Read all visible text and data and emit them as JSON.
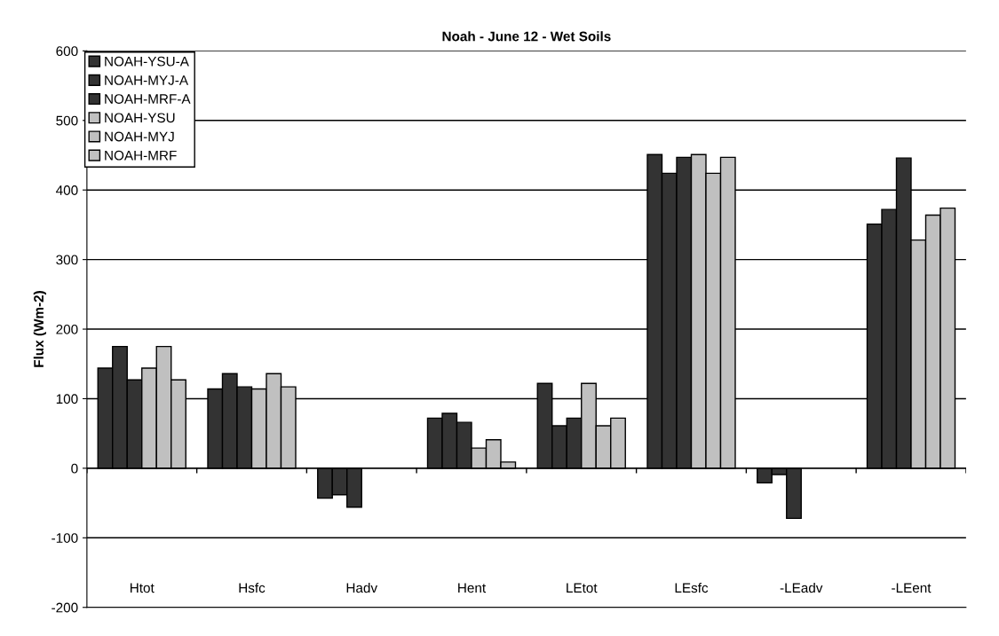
{
  "chart_data": {
    "type": "bar",
    "title": "Noah - June 12 - Wet Soils",
    "ylabel": "Flux (Wm-2)",
    "categories": [
      "Htot",
      "Hsfc",
      "Hadv",
      "Hent",
      "LEtot",
      "LEsfc",
      "-LEadv",
      "-LEent"
    ],
    "series": [
      {
        "name": "NOAH-YSU-A",
        "color": "#333333",
        "values": [
          144,
          114,
          -43,
          72,
          122,
          451,
          -21,
          351
        ]
      },
      {
        "name": "NOAH-MYJ-A",
        "color": "#333333",
        "values": [
          175,
          136,
          -38,
          79,
          61,
          424,
          -9,
          372
        ]
      },
      {
        "name": "NOAH-MRF-A",
        "color": "#333333",
        "values": [
          127,
          117,
          -56,
          66,
          72,
          447,
          -72,
          446
        ]
      },
      {
        "name": "NOAH-YSU",
        "color": "#c0c0c0",
        "values": [
          144,
          114,
          null,
          29,
          122,
          451,
          null,
          328
        ]
      },
      {
        "name": "NOAH-MYJ",
        "color": "#c0c0c0",
        "values": [
          175,
          136,
          null,
          41,
          61,
          424,
          null,
          364
        ]
      },
      {
        "name": "NOAH-MRF",
        "color": "#c0c0c0",
        "values": [
          127,
          117,
          null,
          9,
          72,
          447,
          null,
          374
        ]
      }
    ],
    "ylim": [
      -200,
      600
    ],
    "yticks": [
      -200,
      -100,
      0,
      100,
      200,
      300,
      400,
      500,
      600
    ],
    "grid": "y",
    "legend": "top left"
  }
}
